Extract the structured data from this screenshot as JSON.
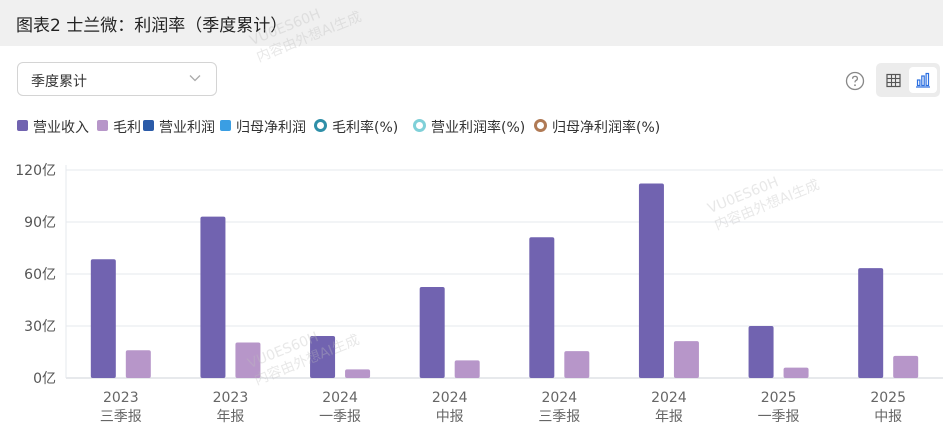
{
  "header": {
    "title": "图表2 士兰微：利润率（季度累计）"
  },
  "controls": {
    "period_select": {
      "value": "季度累计"
    },
    "help_icon": "question-circle-icon",
    "view_table_icon": "table-icon",
    "view_chart_icon": "bar-chart-icon",
    "active_view": "chart"
  },
  "legend": [
    {
      "label": "营业收入",
      "kind": "bar",
      "color": "#7163b0"
    },
    {
      "label": "毛利",
      "kind": "bar",
      "color": "#b796c9"
    },
    {
      "label": "营业利润",
      "kind": "bar",
      "color": "#2b5ba8"
    },
    {
      "label": "归母净利润",
      "kind": "bar",
      "color": "#3a9ee3"
    },
    {
      "label": "毛利率(%)",
      "kind": "line",
      "color": "#2f8fa8"
    },
    {
      "label": "营业利润率(%)",
      "kind": "line",
      "color": "#7fd0d8"
    },
    {
      "label": "归母净利润率(%)",
      "kind": "line",
      "color": "#b07a55"
    }
  ],
  "watermarks": [
    "VU0ES60H",
    "内容由外想AI生成"
  ],
  "chart_data": {
    "type": "bar",
    "categories": [
      [
        "2023",
        "三季报"
      ],
      [
        "2023",
        "年报"
      ],
      [
        "2024",
        "一季报"
      ],
      [
        "2024",
        "中报"
      ],
      [
        "2024",
        "三季报"
      ],
      [
        "2024",
        "年报"
      ],
      [
        "2025",
        "一季报"
      ],
      [
        "2025",
        "中报"
      ]
    ],
    "series": [
      {
        "name": "营业收入",
        "color": "#7163b0",
        "values": [
          68.5,
          93.1,
          24.2,
          52.5,
          81.2,
          112.2,
          30.0,
          63.4
        ]
      },
      {
        "name": "毛利",
        "color": "#b796c9",
        "values": [
          16.0,
          20.5,
          5.0,
          10.2,
          15.5,
          21.3,
          6.0,
          12.8
        ]
      }
    ],
    "y_ticks": [
      "0亿",
      "30亿",
      "60亿",
      "90亿",
      "120亿"
    ],
    "ylim": [
      0,
      120
    ],
    "grid": true,
    "legend_position": "top-left"
  }
}
